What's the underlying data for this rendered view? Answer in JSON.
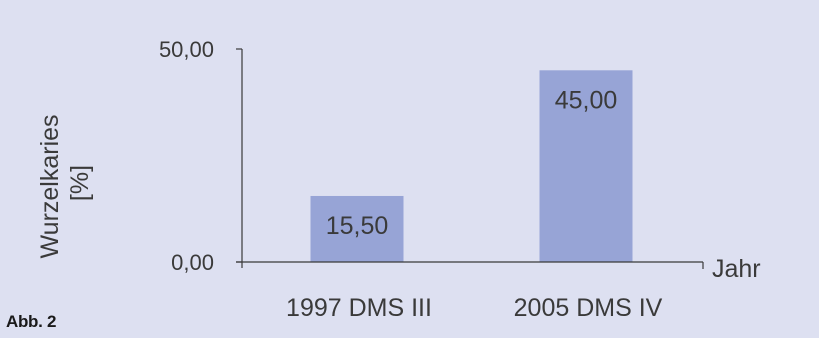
{
  "figure_label": "Abb. 2",
  "colors": {
    "background": "#dde0f1",
    "bar": "#97a4d6",
    "axis": "#3a3a3a"
  },
  "chart_data": {
    "type": "bar",
    "categories": [
      "1997 DMS III",
      "2005 DMS IV"
    ],
    "values": [
      15.5,
      45.0
    ],
    "value_labels": [
      "15,50",
      "45,00"
    ],
    "ylabel_lines": [
      "Wurzelkaries",
      "[%]"
    ],
    "xlabel": "Jahr",
    "ylim": [
      0,
      50
    ],
    "y_ticks": [
      0,
      50
    ],
    "y_tick_labels": [
      "0,00",
      "50,00"
    ],
    "grid": false,
    "legend": "none"
  }
}
